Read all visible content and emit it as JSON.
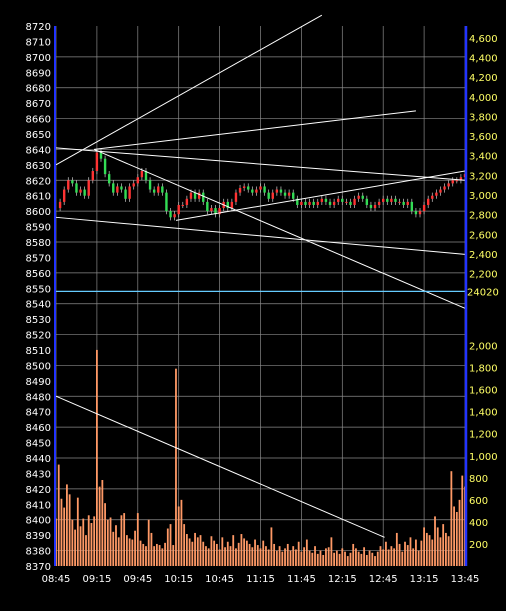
{
  "chart_data": {
    "type": "candlestick",
    "x_tick_labels": [
      "08:45",
      "09:15",
      "09:45",
      "10:15",
      "10:45",
      "11:15",
      "11:45",
      "12:15",
      "12:45",
      "13:15",
      "13:45"
    ],
    "time_range_minutes": [
      525,
      825
    ],
    "left_axis": {
      "min": 8370,
      "max": 8720,
      "ticks": [
        8370,
        8380,
        8390,
        8400,
        8410,
        8420,
        8430,
        8440,
        8450,
        8460,
        8470,
        8480,
        8490,
        8500,
        8510,
        8520,
        8530,
        8540,
        8550,
        8560,
        8570,
        8580,
        8590,
        8600,
        8610,
        8620,
        8630,
        8640,
        8650,
        8660,
        8670,
        8680,
        8690,
        8700,
        8710,
        8720
      ]
    },
    "price_panel_right_axis": {
      "min": 2020,
      "max": 4720,
      "ticks": [
        2200,
        2400,
        2600,
        2800,
        3000,
        3200,
        3400,
        3600,
        3800,
        4000,
        4200,
        4400,
        4600
      ],
      "tick_labels": [
        "2,200",
        "2,400",
        "2,600",
        "2,800",
        "3,000",
        "3,200",
        "3,400",
        "3,600",
        "3,800",
        "4,000",
        "4,200",
        "4,400",
        "4,600"
      ]
    },
    "reference_line": {
      "value": 8548,
      "label": "24020",
      "color": "#66ccff"
    },
    "volume_panel_right_axis": {
      "min": 0,
      "max": 2050,
      "ticks": [
        200,
        400,
        600,
        800,
        1000,
        1200,
        1400,
        1600,
        1800,
        2000
      ],
      "tick_labels": [
        "200",
        "400",
        "600",
        "800",
        "1,000",
        "1,200",
        "1,400",
        "1,600",
        "1,800",
        "2,000"
      ]
    },
    "price_series": [
      [
        525,
        8602
      ],
      [
        528,
        8606
      ],
      [
        531,
        8614
      ],
      [
        534,
        8620
      ],
      [
        537,
        8618
      ],
      [
        540,
        8612
      ],
      [
        543,
        8614
      ],
      [
        546,
        8610
      ],
      [
        549,
        8620
      ],
      [
        552,
        8626
      ],
      [
        555,
        8638
      ],
      [
        558,
        8634
      ],
      [
        561,
        8624
      ],
      [
        564,
        8618
      ],
      [
        567,
        8612
      ],
      [
        570,
        8616
      ],
      [
        573,
        8614
      ],
      [
        576,
        8608
      ],
      [
        579,
        8616
      ],
      [
        582,
        8618
      ],
      [
        585,
        8622
      ],
      [
        588,
        8626
      ],
      [
        591,
        8620
      ],
      [
        594,
        8614
      ],
      [
        597,
        8612
      ],
      [
        600,
        8616
      ],
      [
        603,
        8612
      ],
      [
        606,
        8600
      ],
      [
        609,
        8596
      ],
      [
        612,
        8598
      ],
      [
        615,
        8604
      ],
      [
        618,
        8604
      ],
      [
        621,
        8608
      ],
      [
        624,
        8612
      ],
      [
        627,
        8608
      ],
      [
        630,
        8612
      ],
      [
        633,
        8606
      ],
      [
        636,
        8600
      ],
      [
        639,
        8602
      ],
      [
        642,
        8598
      ],
      [
        645,
        8602
      ],
      [
        648,
        8606
      ],
      [
        651,
        8602
      ],
      [
        654,
        8606
      ],
      [
        657,
        8612
      ],
      [
        660,
        8615
      ],
      [
        663,
        8616
      ],
      [
        666,
        8614
      ],
      [
        669,
        8612
      ],
      [
        672,
        8614
      ],
      [
        675,
        8616
      ],
      [
        678,
        8612
      ],
      [
        681,
        8608
      ],
      [
        684,
        8612
      ],
      [
        687,
        8614
      ],
      [
        690,
        8612
      ],
      [
        693,
        8610
      ],
      [
        696,
        8612
      ],
      [
        699,
        8608
      ],
      [
        702,
        8604
      ],
      [
        705,
        8606
      ],
      [
        708,
        8604
      ],
      [
        711,
        8606
      ],
      [
        714,
        8604
      ],
      [
        717,
        8606
      ],
      [
        720,
        8608
      ],
      [
        723,
        8606
      ],
      [
        726,
        8604
      ],
      [
        729,
        8606
      ],
      [
        732,
        8608
      ],
      [
        735,
        8606
      ],
      [
        738,
        8606
      ],
      [
        741,
        8604
      ],
      [
        744,
        8608
      ],
      [
        747,
        8610
      ],
      [
        750,
        8608
      ],
      [
        753,
        8604
      ],
      [
        756,
        8602
      ],
      [
        759,
        8604
      ],
      [
        762,
        8606
      ],
      [
        765,
        8608
      ],
      [
        768,
        8606
      ],
      [
        771,
        8608
      ],
      [
        774,
        8606
      ],
      [
        777,
        8606
      ],
      [
        780,
        8604
      ],
      [
        783,
        8606
      ],
      [
        786,
        8600
      ],
      [
        789,
        8598
      ],
      [
        792,
        8600
      ],
      [
        795,
        8604
      ],
      [
        798,
        8608
      ],
      [
        801,
        8610
      ],
      [
        804,
        8612
      ],
      [
        807,
        8614
      ],
      [
        810,
        8616
      ],
      [
        813,
        8618
      ],
      [
        816,
        8620
      ],
      [
        819,
        8620
      ],
      [
        822,
        8622
      ],
      [
        825,
        8624
      ]
    ],
    "volume_series": [
      [
        525,
        430
      ],
      [
        527,
        920
      ],
      [
        529,
        610
      ],
      [
        531,
        530
      ],
      [
        533,
        740
      ],
      [
        535,
        650
      ],
      [
        537,
        420
      ],
      [
        539,
        330
      ],
      [
        541,
        620
      ],
      [
        543,
        360
      ],
      [
        545,
        430
      ],
      [
        547,
        280
      ],
      [
        549,
        460
      ],
      [
        551,
        390
      ],
      [
        553,
        450
      ],
      [
        555,
        1960
      ],
      [
        557,
        720
      ],
      [
        559,
        780
      ],
      [
        561,
        570
      ],
      [
        563,
        420
      ],
      [
        565,
        440
      ],
      [
        567,
        310
      ],
      [
        569,
        370
      ],
      [
        571,
        260
      ],
      [
        573,
        460
      ],
      [
        575,
        480
      ],
      [
        577,
        280
      ],
      [
        579,
        250
      ],
      [
        581,
        240
      ],
      [
        583,
        320
      ],
      [
        585,
        480
      ],
      [
        587,
        230
      ],
      [
        589,
        200
      ],
      [
        591,
        180
      ],
      [
        593,
        420
      ],
      [
        595,
        300
      ],
      [
        597,
        180
      ],
      [
        599,
        200
      ],
      [
        601,
        190
      ],
      [
        603,
        160
      ],
      [
        605,
        210
      ],
      [
        607,
        340
      ],
      [
        609,
        380
      ],
      [
        611,
        190
      ],
      [
        613,
        1790
      ],
      [
        615,
        540
      ],
      [
        617,
        600
      ],
      [
        619,
        380
      ],
      [
        621,
        290
      ],
      [
        623,
        250
      ],
      [
        625,
        220
      ],
      [
        627,
        300
      ],
      [
        629,
        260
      ],
      [
        631,
        280
      ],
      [
        633,
        220
      ],
      [
        635,
        180
      ],
      [
        637,
        160
      ],
      [
        639,
        270
      ],
      [
        641,
        230
      ],
      [
        643,
        200
      ],
      [
        645,
        150
      ],
      [
        647,
        260
      ],
      [
        649,
        170
      ],
      [
        651,
        220
      ],
      [
        653,
        180
      ],
      [
        655,
        280
      ],
      [
        657,
        160
      ],
      [
        659,
        210
      ],
      [
        661,
        290
      ],
      [
        663,
        250
      ],
      [
        665,
        230
      ],
      [
        667,
        200
      ],
      [
        669,
        170
      ],
      [
        671,
        240
      ],
      [
        673,
        190
      ],
      [
        675,
        160
      ],
      [
        677,
        230
      ],
      [
        679,
        180
      ],
      [
        681,
        150
      ],
      [
        683,
        350
      ],
      [
        685,
        200
      ],
      [
        687,
        140
      ],
      [
        689,
        180
      ],
      [
        691,
        130
      ],
      [
        693,
        160
      ],
      [
        695,
        200
      ],
      [
        697,
        140
      ],
      [
        699,
        180
      ],
      [
        701,
        150
      ],
      [
        703,
        220
      ],
      [
        705,
        130
      ],
      [
        707,
        170
      ],
      [
        709,
        240
      ],
      [
        711,
        140
      ],
      [
        713,
        120
      ],
      [
        715,
        180
      ],
      [
        717,
        110
      ],
      [
        719,
        140
      ],
      [
        721,
        100
      ],
      [
        723,
        160
      ],
      [
        725,
        170
      ],
      [
        727,
        260
      ],
      [
        729,
        120
      ],
      [
        731,
        140
      ],
      [
        733,
        110
      ],
      [
        735,
        160
      ],
      [
        737,
        130
      ],
      [
        739,
        90
      ],
      [
        741,
        120
      ],
      [
        743,
        200
      ],
      [
        745,
        160
      ],
      [
        747,
        130
      ],
      [
        749,
        110
      ],
      [
        751,
        170
      ],
      [
        753,
        100
      ],
      [
        755,
        140
      ],
      [
        757,
        120
      ],
      [
        759,
        90
      ],
      [
        761,
        130
      ],
      [
        763,
        180
      ],
      [
        765,
        150
      ],
      [
        767,
        220
      ],
      [
        769,
        150
      ],
      [
        771,
        180
      ],
      [
        773,
        160
      ],
      [
        775,
        300
      ],
      [
        777,
        200
      ],
      [
        779,
        130
      ],
      [
        781,
        220
      ],
      [
        783,
        190
      ],
      [
        785,
        260
      ],
      [
        787,
        160
      ],
      [
        789,
        240
      ],
      [
        791,
        140
      ],
      [
        793,
        230
      ],
      [
        795,
        350
      ],
      [
        797,
        300
      ],
      [
        799,
        280
      ],
      [
        801,
        240
      ],
      [
        803,
        450
      ],
      [
        805,
        350
      ],
      [
        807,
        260
      ],
      [
        809,
        380
      ],
      [
        811,
        300
      ],
      [
        813,
        270
      ],
      [
        815,
        860
      ],
      [
        817,
        540
      ],
      [
        819,
        490
      ],
      [
        821,
        600
      ],
      [
        823,
        820
      ],
      [
        825,
        720
      ]
    ],
    "trend_lines": [
      {
        "panel": "price",
        "from": [
          525,
          8630
        ],
        "to": [
          720,
          8727
        ]
      },
      {
        "panel": "price",
        "from": [
          525,
          8641
        ],
        "to": [
          825,
          8620
        ]
      },
      {
        "panel": "price",
        "from": [
          525,
          8596
        ],
        "to": [
          825,
          8572
        ]
      },
      {
        "panel": "price",
        "from": [
          553,
          8640
        ],
        "to": [
          825,
          8537
        ]
      },
      {
        "panel": "price",
        "from": [
          553,
          8640
        ],
        "to": [
          789,
          8665
        ]
      },
      {
        "panel": "price",
        "from": [
          613,
          8594
        ],
        "to": [
          825,
          8626
        ]
      },
      {
        "panel": "volume",
        "from": [
          525,
          1540
        ],
        "to": [
          766,
          260
        ]
      }
    ]
  }
}
